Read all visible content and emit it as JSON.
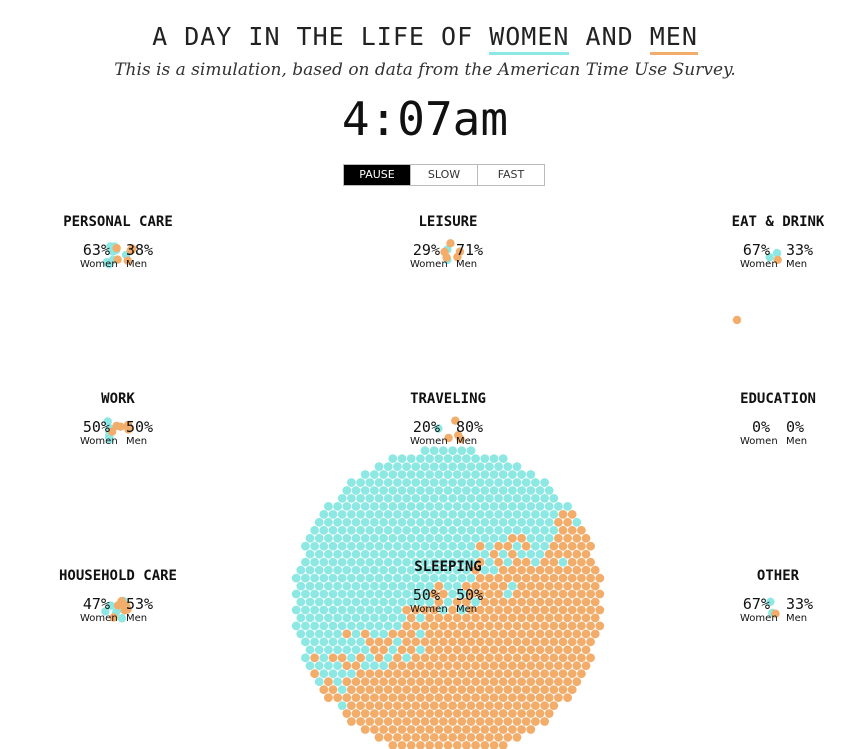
{
  "header": {
    "title_prefix": "A DAY IN THE LIFE OF",
    "women_word": "WOMEN",
    "and_word": "AND",
    "men_word": "MEN",
    "subtitle": "This is a simulation, based on data from the American Time Use Survey.",
    "clock": "4:07am"
  },
  "controls": {
    "pause": "PAUSE",
    "slow": "SLOW",
    "fast": "FAST"
  },
  "colors": {
    "women": "#8de8e4",
    "men": "#f2ad6b"
  },
  "chart_data": {
    "type": "bubble-cluster",
    "series": [
      {
        "name": "Women",
        "color": "#8de8e4"
      },
      {
        "name": "Men",
        "color": "#f2ad6b"
      }
    ],
    "categories": [
      {
        "name": "PERSONAL CARE",
        "women_pct": "63%",
        "men_pct": "38%",
        "women_label": "Women",
        "men_label": "Men",
        "women_count": 10,
        "men_count": 6
      },
      {
        "name": "LEISURE",
        "women_pct": "29%",
        "men_pct": "71%",
        "women_label": "Women",
        "men_label": "Men",
        "women_count": 2,
        "men_count": 5
      },
      {
        "name": "EAT & DRINK",
        "women_pct": "67%",
        "men_pct": "33%",
        "women_label": "Women",
        "men_label": "Men",
        "women_count": 2,
        "men_count": 1
      },
      {
        "name": "WORK",
        "women_pct": "50%",
        "men_pct": "50%",
        "women_label": "Women",
        "men_label": "Men",
        "women_count": 6,
        "men_count": 6
      },
      {
        "name": "TRAVELING",
        "women_pct": "20%",
        "men_pct": "80%",
        "women_label": "Women",
        "men_label": "Men",
        "women_count": 1,
        "men_count": 4
      },
      {
        "name": "EDUCATION",
        "women_pct": "0%",
        "men_pct": "0%",
        "women_label": "Women",
        "men_label": "Men",
        "women_count": 0,
        "men_count": 0
      },
      {
        "name": "HOUSEHOLD CARE",
        "women_pct": "47%",
        "men_pct": "53%",
        "women_label": "Women",
        "men_label": "Men",
        "women_count": 7,
        "men_count": 8
      },
      {
        "name": "SLEEPING",
        "women_pct": "50%",
        "men_pct": "50%",
        "women_label": "Women",
        "men_label": "Men",
        "women_count": 520,
        "men_count": 520
      },
      {
        "name": "OTHER",
        "women_pct": "67%",
        "men_pct": "33%",
        "women_label": "Women",
        "men_label": "Men",
        "women_count": 2,
        "men_count": 1
      }
    ]
  }
}
